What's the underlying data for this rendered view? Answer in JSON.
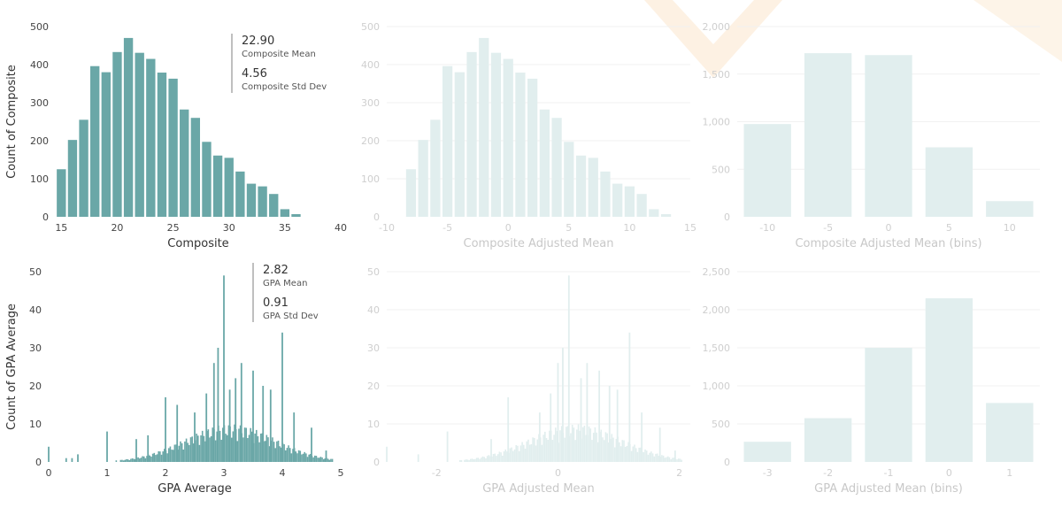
{
  "colors": {
    "active_bar": "#6aa7a7",
    "faded_bar": "#e1eeee",
    "active_text": "#333333",
    "faded_text": "#c8c8c8",
    "tick_active": "#444444",
    "tick_faded": "#cfcfcf",
    "grid_faded": "#f1f1f1",
    "watermark": "#fbe6cc"
  },
  "kpis": {
    "composite": {
      "mean_value": "22.90",
      "mean_label": "Composite Mean",
      "std_value": "4.56",
      "std_label": "Composite Std Dev"
    },
    "gpa": {
      "mean_value": "2.82",
      "mean_label": "GPA Mean",
      "std_value": "0.91",
      "std_label": "GPA Std Dev"
    }
  },
  "chart_data": [
    {
      "id": "composite-hist",
      "type": "bar",
      "state": "active",
      "xlabel": "Composite",
      "ylabel": "Count of Composite",
      "x_ticks": [
        "15",
        "20",
        "25",
        "30",
        "35",
        "40"
      ],
      "y_ticks": [
        "0",
        "100",
        "200",
        "300",
        "400",
        "500"
      ],
      "xlim": [
        14.5,
        40
      ],
      "ylim": [
        0,
        500
      ],
      "x": [
        15,
        16,
        17,
        18,
        19,
        20,
        21,
        22,
        23,
        24,
        25,
        26,
        27,
        28,
        29,
        30,
        31,
        32,
        33,
        34,
        35,
        36
      ],
      "values": [
        125,
        202,
        255,
        396,
        380,
        433,
        470,
        431,
        415,
        379,
        363,
        282,
        260,
        197,
        161,
        155,
        119,
        87,
        80,
        60,
        20,
        7
      ]
    },
    {
      "id": "composite-adjusted-hist",
      "type": "bar",
      "state": "faded",
      "xlabel": "Composite Adjusted Mean",
      "ylabel": "",
      "x_ticks": [
        "-10",
        "-5",
        "0",
        "5",
        "10",
        "15"
      ],
      "y_ticks": [
        "0",
        "100",
        "200",
        "300",
        "400",
        "500"
      ],
      "xlim": [
        -10,
        15
      ],
      "ylim": [
        0,
        500
      ],
      "x": [
        -8,
        -7,
        -6,
        -5,
        -4,
        -3,
        -2,
        -1,
        0,
        1,
        2,
        3,
        4,
        5,
        6,
        7,
        8,
        9,
        10,
        11,
        12,
        13
      ],
      "values": [
        125,
        202,
        255,
        396,
        380,
        433,
        470,
        431,
        415,
        379,
        363,
        282,
        260,
        197,
        161,
        155,
        119,
        87,
        80,
        60,
        20,
        7
      ]
    },
    {
      "id": "composite-adjusted-bins",
      "type": "bar",
      "state": "faded",
      "xlabel": "Composite Adjusted Mean (bins)",
      "ylabel": "",
      "categories": [
        "-10",
        "-5",
        "0",
        "5",
        "10"
      ],
      "y_ticks": [
        "0",
        "500",
        "1,000",
        "1,500",
        "2,000"
      ],
      "ylim": [
        0,
        2000
      ],
      "values": [
        975,
        1720,
        1700,
        730,
        165
      ]
    },
    {
      "id": "gpa-hist",
      "type": "bar",
      "state": "active",
      "xlabel": "GPA Average",
      "ylabel": "Count of GPA Average",
      "x_ticks": [
        "0",
        "1",
        "2",
        "3",
        "4",
        "5"
      ],
      "y_ticks": [
        "0",
        "10",
        "20",
        "30",
        "40",
        "50"
      ],
      "xlim": [
        0,
        5
      ],
      "ylim": [
        0,
        50
      ],
      "spikes": [
        {
          "x": 0.0,
          "y": 4
        },
        {
          "x": 0.3,
          "y": 1
        },
        {
          "x": 0.4,
          "y": 1
        },
        {
          "x": 0.5,
          "y": 2
        },
        {
          "x": 1.0,
          "y": 8
        },
        {
          "x": 1.5,
          "y": 6
        },
        {
          "x": 1.7,
          "y": 7
        },
        {
          "x": 2.0,
          "y": 17
        },
        {
          "x": 2.2,
          "y": 15
        },
        {
          "x": 2.5,
          "y": 13
        },
        {
          "x": 2.7,
          "y": 18
        },
        {
          "x": 2.83,
          "y": 26
        },
        {
          "x": 2.9,
          "y": 30
        },
        {
          "x": 3.0,
          "y": 49
        },
        {
          "x": 3.1,
          "y": 19
        },
        {
          "x": 3.2,
          "y": 22
        },
        {
          "x": 3.3,
          "y": 26
        },
        {
          "x": 3.5,
          "y": 24
        },
        {
          "x": 3.67,
          "y": 20
        },
        {
          "x": 3.8,
          "y": 19
        },
        {
          "x": 4.0,
          "y": 34
        },
        {
          "x": 4.2,
          "y": 13
        },
        {
          "x": 4.5,
          "y": 9
        },
        {
          "x": 4.75,
          "y": 3
        }
      ]
    },
    {
      "id": "gpa-adjusted-hist",
      "type": "bar",
      "state": "faded",
      "xlabel": "GPA Adjusted Mean",
      "ylabel": "",
      "x_ticks": [
        "-2",
        "0",
        "2"
      ],
      "y_ticks": [
        "0",
        "10",
        "20",
        "30",
        "40",
        "50"
      ],
      "xlim": [
        -2.82,
        2.18
      ],
      "ylim": [
        0,
        50
      ],
      "spikes": [
        {
          "x": -2.82,
          "y": 4
        },
        {
          "x": -2.3,
          "y": 2
        },
        {
          "x": -1.82,
          "y": 8
        },
        {
          "x": -1.1,
          "y": 6
        },
        {
          "x": -0.82,
          "y": 17
        },
        {
          "x": -0.3,
          "y": 13
        },
        {
          "x": -0.12,
          "y": 18
        },
        {
          "x": 0.0,
          "y": 26
        },
        {
          "x": 0.08,
          "y": 30
        },
        {
          "x": 0.18,
          "y": 49
        },
        {
          "x": 0.38,
          "y": 22
        },
        {
          "x": 0.48,
          "y": 26
        },
        {
          "x": 0.68,
          "y": 24
        },
        {
          "x": 0.85,
          "y": 20
        },
        {
          "x": 0.98,
          "y": 19
        },
        {
          "x": 1.18,
          "y": 34
        },
        {
          "x": 1.38,
          "y": 13
        },
        {
          "x": 1.68,
          "y": 9
        },
        {
          "x": 1.93,
          "y": 3
        }
      ]
    },
    {
      "id": "gpa-adjusted-bins",
      "type": "bar",
      "state": "faded",
      "xlabel": "GPA Adjusted Mean (bins)",
      "ylabel": "",
      "categories": [
        "-3",
        "-2",
        "-1",
        "0",
        "1"
      ],
      "y_ticks": [
        "0",
        "500",
        "1,000",
        "1,500",
        "2,000",
        "2,500"
      ],
      "ylim": [
        0,
        2500
      ],
      "values": [
        265,
        575,
        1500,
        2150,
        775
      ]
    }
  ]
}
